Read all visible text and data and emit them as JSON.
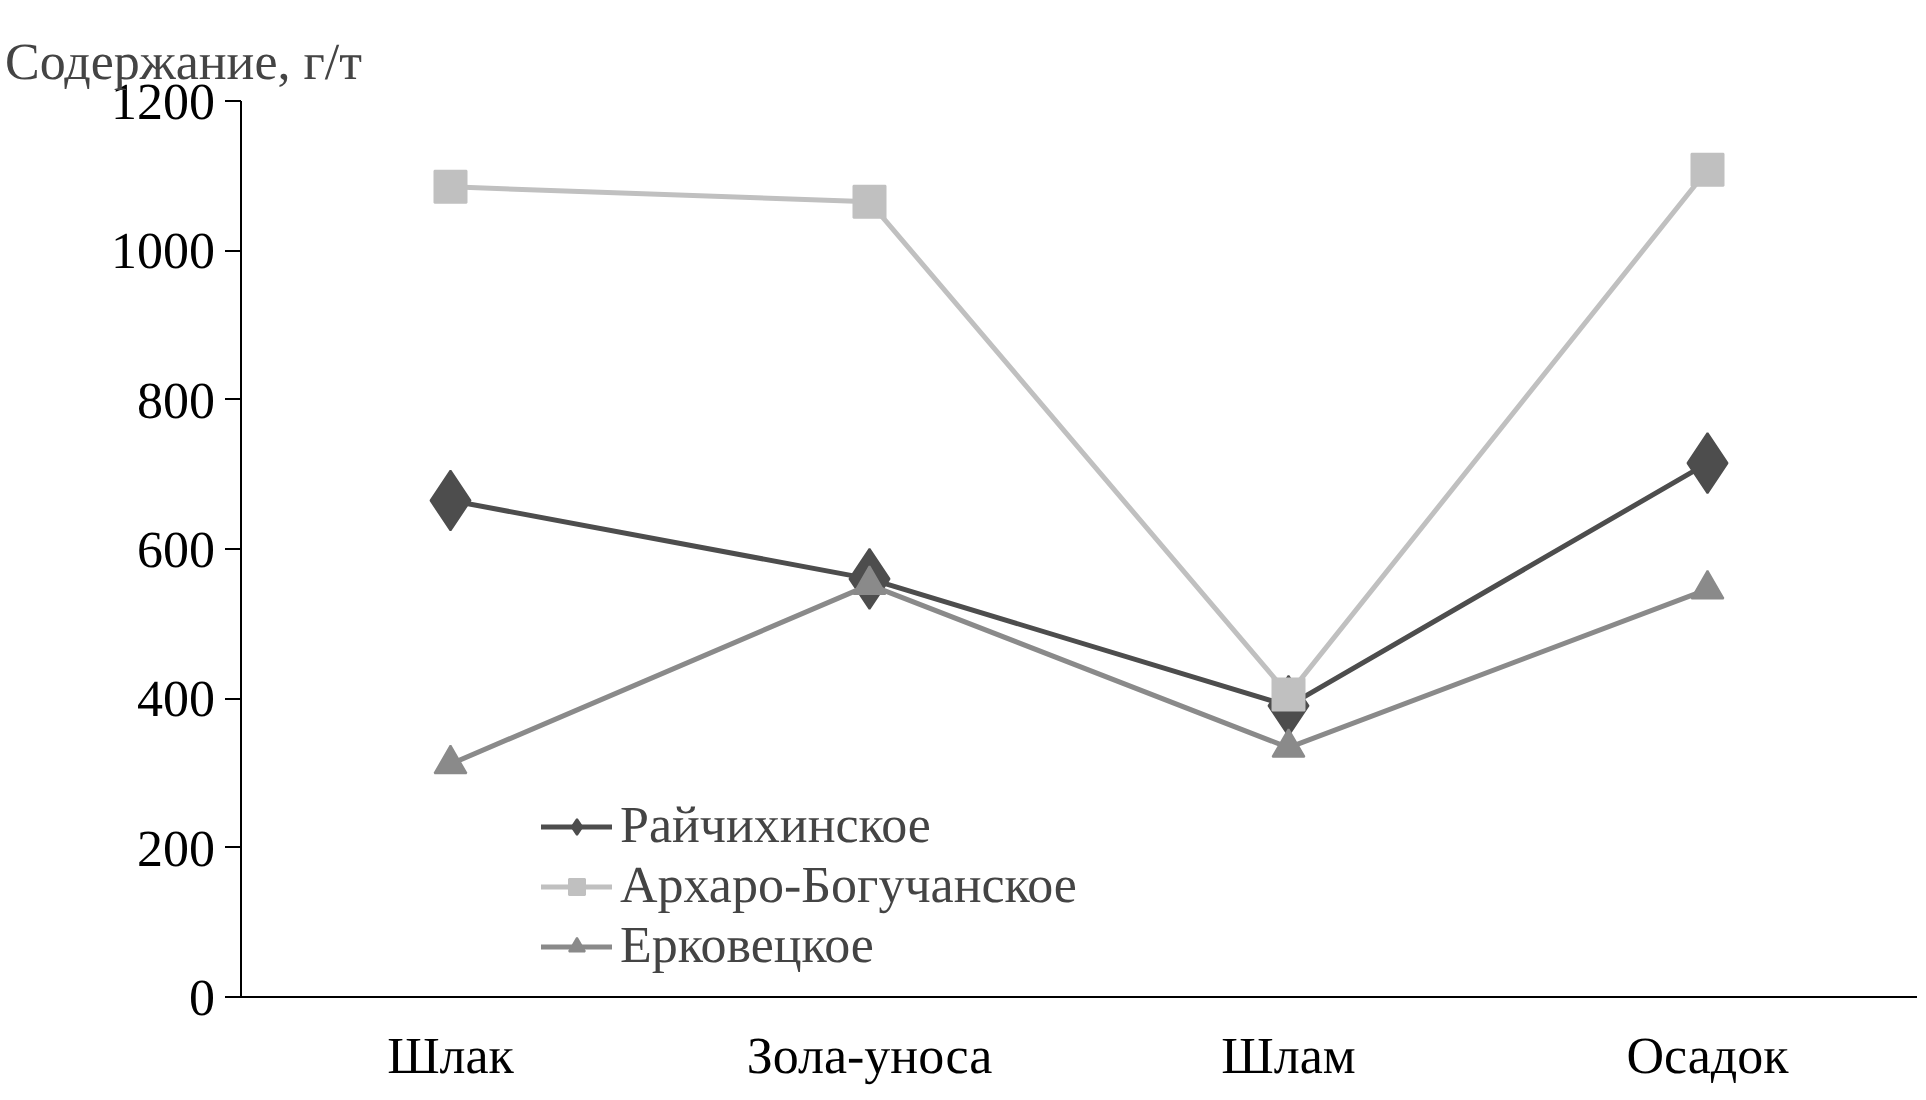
{
  "chart_data": {
    "type": "line",
    "ylabel": "Содержание, г/т",
    "categories": [
      "Шлак",
      "Зола-уноса",
      "Шлам",
      "Осадок"
    ],
    "series": [
      {
        "name": "Райчихинское",
        "color": "#4d4d4d",
        "marker": "diamond",
        "values": [
          665,
          560,
          390,
          715
        ]
      },
      {
        "name": "Архаро-Богучанское",
        "color": "#c0c0c0",
        "marker": "square",
        "values": [
          1085,
          1065,
          405,
          1108
        ]
      },
      {
        "name": "Ерковецкое",
        "color": "#8a8a8a",
        "marker": "triangle",
        "values": [
          312,
          552,
          334,
          546
        ]
      }
    ],
    "ylim": [
      0,
      1200
    ],
    "yticks": [
      0,
      200,
      400,
      600,
      800,
      1000,
      1200
    ],
    "grid": false,
    "legend": "bottom left"
  }
}
